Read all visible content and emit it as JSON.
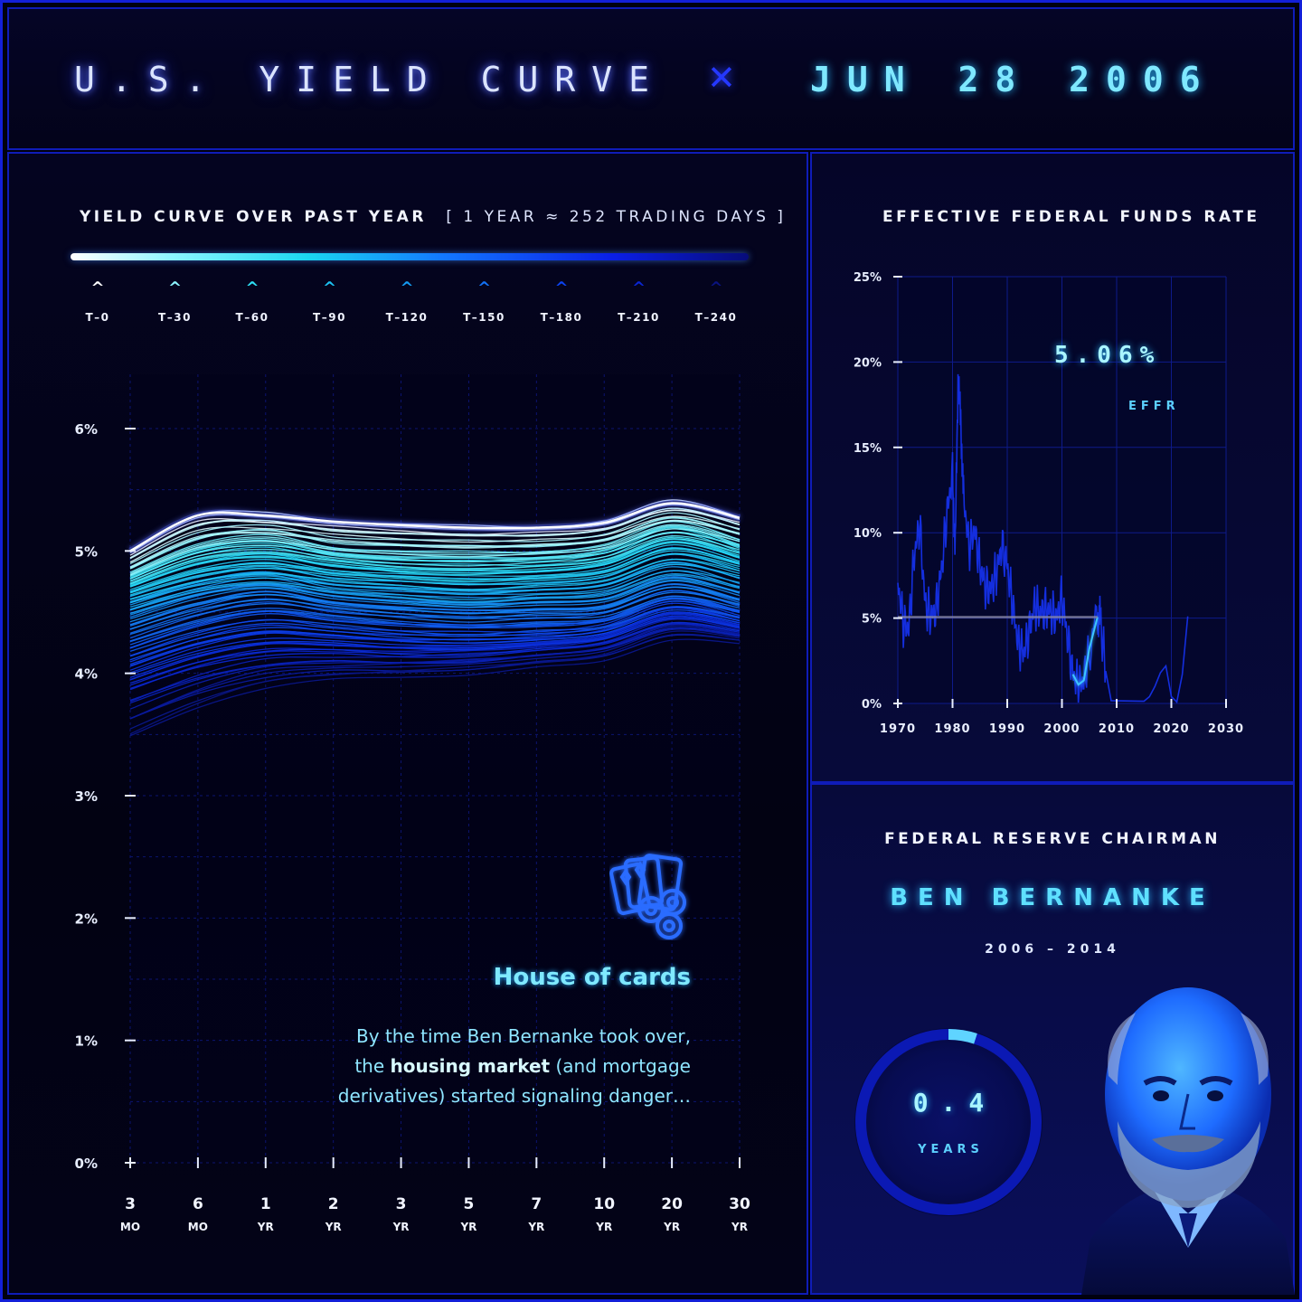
{
  "header": {
    "title": "U.S. YIELD CURVE",
    "date": "JUN 28 2006"
  },
  "yield_panel": {
    "title": "YIELD CURVE OVER PAST YEAR",
    "subtitle": "[ 1 YEAR ≈ 252 TRADING DAYS ]",
    "legend": [
      {
        "label": "T–0",
        "color": "#ffffff"
      },
      {
        "label": "T–30",
        "color": "#8cf6ff"
      },
      {
        "label": "T–60",
        "color": "#2ee0f5"
      },
      {
        "label": "T–90",
        "color": "#1cc2f2"
      },
      {
        "label": "T–120",
        "color": "#159cf2"
      },
      {
        "label": "T–150",
        "color": "#1372f5"
      },
      {
        "label": "T–180",
        "color": "#0c43f0"
      },
      {
        "label": "T–210",
        "color": "#0a26d2"
      },
      {
        "label": "T–240",
        "color": "#0a1480"
      }
    ],
    "annotation": {
      "title": "House of cards",
      "line1": "By the time Ben Bernanke took over,",
      "line2_pre": "the ",
      "line2_bold": "housing market",
      "line2_post": " (and mortgage",
      "line3": "derivatives) started signaling danger…",
      "icon": "playing-cards-chips-icon"
    }
  },
  "effr_panel": {
    "title": "EFFECTIVE FEDERAL FUNDS RATE",
    "value": "5.06%",
    "value_label": "EFFR"
  },
  "chair_panel": {
    "title": "FEDERAL RESERVE CHAIRMAN",
    "name": "BEN BERNANKE",
    "term": "2006 – 2014",
    "tenure_value": "0.4",
    "tenure_fraction": 0.05,
    "tenure_label": "YEARS"
  },
  "chart_data": [
    {
      "type": "line",
      "title": "YIELD CURVE OVER PAST YEAR",
      "categories": [
        {
          "num": "3",
          "unit": "MO"
        },
        {
          "num": "6",
          "unit": "MO"
        },
        {
          "num": "1",
          "unit": "YR"
        },
        {
          "num": "2",
          "unit": "YR"
        },
        {
          "num": "3",
          "unit": "YR"
        },
        {
          "num": "5",
          "unit": "YR"
        },
        {
          "num": "7",
          "unit": "YR"
        },
        {
          "num": "10",
          "unit": "YR"
        },
        {
          "num": "20",
          "unit": "YR"
        },
        {
          "num": "30",
          "unit": "YR"
        }
      ],
      "ylim": [
        0,
        6.5
      ],
      "yticks": [
        "0%",
        "1%",
        "2%",
        "3%",
        "4%",
        "5%",
        "6%"
      ],
      "series": [
        {
          "name": "T–0",
          "values": [
            5.0,
            5.29,
            5.29,
            5.24,
            5.21,
            5.19,
            5.19,
            5.23,
            5.39,
            5.27
          ]
        },
        {
          "name": "T–30",
          "values": [
            4.82,
            5.05,
            5.12,
            5.03,
            5.0,
            4.99,
            5.0,
            5.05,
            5.22,
            5.1
          ]
        },
        {
          "name": "T–60",
          "values": [
            4.74,
            4.94,
            5.0,
            4.92,
            4.87,
            4.86,
            4.87,
            4.93,
            5.12,
            4.98
          ]
        },
        {
          "name": "T–90",
          "values": [
            4.63,
            4.78,
            4.85,
            4.78,
            4.75,
            4.72,
            4.74,
            4.79,
            4.97,
            4.86
          ]
        },
        {
          "name": "T–120",
          "values": [
            4.52,
            4.68,
            4.75,
            4.66,
            4.62,
            4.59,
            4.61,
            4.64,
            4.81,
            4.69
          ]
        },
        {
          "name": "T–150",
          "values": [
            4.33,
            4.5,
            4.6,
            4.53,
            4.48,
            4.45,
            4.47,
            4.49,
            4.66,
            4.55
          ]
        },
        {
          "name": "T–180",
          "values": [
            4.1,
            4.28,
            4.38,
            4.34,
            4.3,
            4.29,
            4.3,
            4.36,
            4.54,
            4.44
          ]
        },
        {
          "name": "T–210",
          "values": [
            3.88,
            4.06,
            4.16,
            4.17,
            4.15,
            4.16,
            4.2,
            4.26,
            4.43,
            4.35
          ]
        },
        {
          "name": "T–240",
          "values": [
            3.45,
            3.7,
            3.88,
            3.95,
            3.98,
            4.01,
            4.06,
            4.12,
            4.3,
            4.26
          ]
        }
      ]
    },
    {
      "type": "line",
      "title": "EFFECTIVE FEDERAL FUNDS RATE",
      "x": [
        1970,
        1971,
        1972,
        1973,
        1974,
        1975,
        1976,
        1977,
        1978,
        1979,
        1980,
        1980.5,
        1981,
        1981.5,
        1982,
        1983,
        1984,
        1985,
        1986,
        1987,
        1988,
        1989,
        1990,
        1991,
        1992,
        1993,
        1994,
        1995,
        1996,
        1997,
        1998,
        1999,
        2000,
        2001,
        2002,
        2003,
        2004,
        2005,
        2006.5,
        2007,
        2008,
        2009,
        2015,
        2016,
        2017,
        2018,
        2019,
        2020,
        2021,
        2022,
        2023
      ],
      "y": [
        7.2,
        4.7,
        4.4,
        8.7,
        10.5,
        5.8,
        5.1,
        5.5,
        7.9,
        11.2,
        13.4,
        9.0,
        19.1,
        16.5,
        12.3,
        9.1,
        10.2,
        8.1,
        6.8,
        6.7,
        7.6,
        9.2,
        8.1,
        5.7,
        3.5,
        3.0,
        4.2,
        5.8,
        5.3,
        5.5,
        5.35,
        5.0,
        6.2,
        3.9,
        1.7,
        1.1,
        1.35,
        3.2,
        5.06,
        5.0,
        1.9,
        0.16,
        0.13,
        0.4,
        1.0,
        1.8,
        2.2,
        0.4,
        0.08,
        1.7,
        5.1
      ],
      "highlight_from": 2005.8,
      "marker": {
        "x": 2006.5,
        "y": 5.06
      },
      "xlim": [
        1970,
        2030
      ],
      "ylim": [
        0,
        25
      ],
      "xticks": [
        "1970",
        "1980",
        "1990",
        "2000",
        "2010",
        "2020",
        "2030"
      ],
      "yticks": [
        "0%",
        "5%",
        "10%",
        "15%",
        "20%",
        "25%"
      ]
    }
  ]
}
